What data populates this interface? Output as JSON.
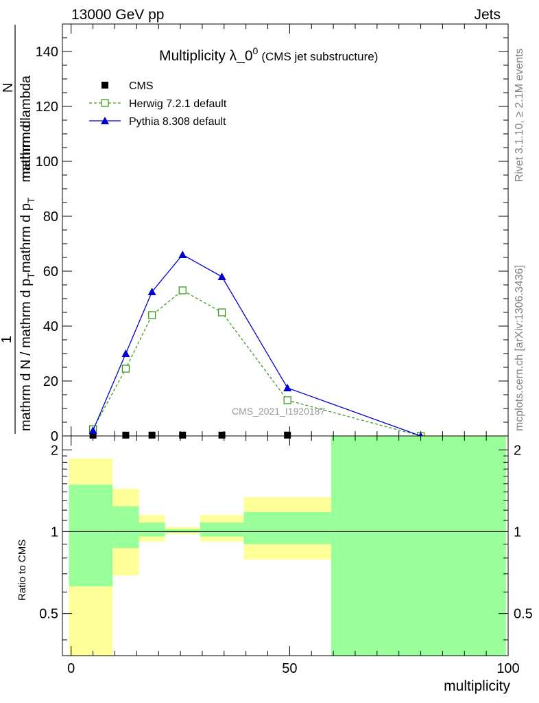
{
  "header": {
    "left": "13000 GeV pp",
    "right": "Jets"
  },
  "side_labels": {
    "rivet": "Rivet 3.1.10, ≥ 2.1M events",
    "mcplots": "mcplots.cern.ch [arXiv:1306.3436]"
  },
  "chart_data": [
    {
      "type": "line",
      "title": "Multiplicity λ_0",
      "title_superscript": "0",
      "subtitle": "(CMS jet substructure)",
      "ylabel_numerator": "1",
      "ylabel_denominator": "mathrm d N / mathrm d p",
      "ylabel_denominator_sub": "T",
      "ylabel_denominator_tail": "mathrm d p",
      "ylabel_denominator_tail_sub": "T",
      "ylabel_numerator_tail": "mathrm d",
      "ylabel_dn": "N",
      "ylabel_lambda": "mathrm d lambda",
      "watermark": "CMS_2021_I1920187",
      "xlim": [
        -2,
        100
      ],
      "ylim": [
        0,
        150
      ],
      "y_ticks": [
        0,
        20,
        40,
        60,
        80,
        100,
        120,
        140
      ],
      "legend_position": "top-left",
      "series": [
        {
          "name": "CMS",
          "color": "#000000",
          "marker": "square-filled",
          "x": [
            5,
            12.5,
            18.5,
            25.5,
            34.5,
            49.5
          ],
          "y": [
            0.3,
            0.3,
            0.3,
            0.3,
            0.3,
            0.3
          ]
        },
        {
          "name": "Herwig 7.2.1 default",
          "color": "#3a9a1a",
          "marker": "square-open",
          "dashed": true,
          "x": [
            5,
            12.5,
            18.5,
            25.5,
            34.5,
            49.5,
            80
          ],
          "y": [
            2.5,
            24.5,
            44,
            53,
            45,
            13,
            0
          ]
        },
        {
          "name": "Pythia 8.308 default",
          "color": "#0000cc",
          "marker": "triangle-filled",
          "dashed": false,
          "x": [
            5,
            12.5,
            18.5,
            25.5,
            34.5,
            49.5,
            80
          ],
          "y": [
            2,
            30,
            52.5,
            66,
            58,
            17.5,
            0
          ]
        }
      ]
    },
    {
      "type": "area",
      "ylabel": "Ratio to CMS",
      "xlabel": "multiplicity",
      "xlim": [
        -2,
        100
      ],
      "ylim": [
        0.35,
        2.25
      ],
      "x_ticks": [
        0,
        50,
        100
      ],
      "y_ticks": [
        0.5,
        1,
        2
      ],
      "reference": 1,
      "bands": [
        {
          "x": [
            -0.5,
            9.5
          ],
          "yellow": [
            0.35,
            1.86
          ],
          "green": [
            0.63,
            1.49
          ]
        },
        {
          "x": [
            9.5,
            15.5
          ],
          "yellow": [
            0.69,
            1.44
          ],
          "green": [
            0.87,
            1.24
          ]
        },
        {
          "x": [
            15.5,
            21.5
          ],
          "yellow": [
            0.92,
            1.15
          ],
          "green": [
            0.96,
            1.08
          ]
        },
        {
          "x": [
            21.5,
            29.5
          ],
          "yellow": [
            0.98,
            1.04
          ],
          "green": [
            0.99,
            1.02
          ]
        },
        {
          "x": [
            29.5,
            39.5
          ],
          "yellow": [
            0.92,
            1.15
          ],
          "green": [
            0.96,
            1.08
          ]
        },
        {
          "x": [
            39.5,
            59.5
          ],
          "yellow": [
            0.79,
            1.34
          ],
          "green": [
            0.9,
            1.18
          ]
        },
        {
          "x": [
            59.5,
            99.5
          ],
          "yellow": [
            0.35,
            2.25
          ],
          "green": [
            0.35,
            2.25
          ]
        }
      ]
    }
  ]
}
